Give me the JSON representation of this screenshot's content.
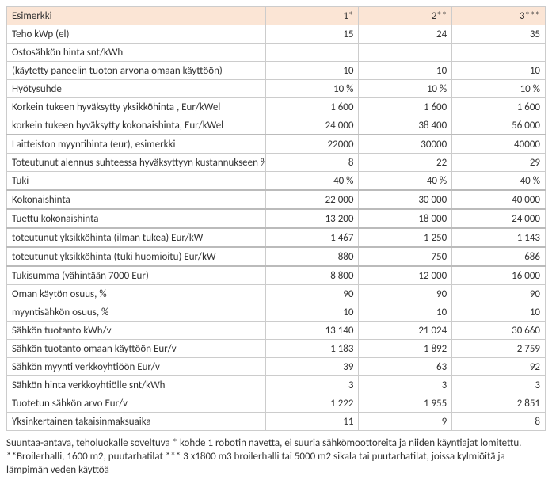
{
  "header": {
    "label": "Esimerkki",
    "cols": [
      "1*",
      "2**",
      "3***"
    ]
  },
  "rows": [
    {
      "label": "Teho kWp (el)",
      "v": [
        "15",
        "24",
        "35"
      ],
      "gap": false
    },
    {
      "label": "Ostosähkön hinta snt/kWh",
      "v": [
        "",
        "",
        ""
      ],
      "gap": false
    },
    {
      "label": " (käytetty paneelin tuoton arvona omaan käyttöön)",
      "v": [
        "10",
        "10",
        "10"
      ],
      "gap": false
    },
    {
      "label": "Hyötysuhde",
      "v": [
        "10 %",
        "10 %",
        "10 %"
      ],
      "gap": false
    },
    {
      "label": "Korkein tukeen hyväksytty yksikköhinta , Eur/kWel",
      "v": [
        "1 600",
        "1 600",
        "1 600"
      ],
      "gap": false
    },
    {
      "label": "korkein tukeen hyväksytty kokonaishinta, Eur/kWel",
      "v": [
        "24 000",
        "38 400",
        "56 000"
      ],
      "gap": false
    },
    {
      "label": "Laitteiston myyntihinta (eur), esimerkki",
      "v": [
        "22000",
        "30000",
        "40000"
      ],
      "gap": true
    },
    {
      "label": "Toteutunut alennus suhteessa hyväksyttyyn kustannukseen %",
      "v": [
        "8",
        "22",
        "29"
      ],
      "gap": false
    },
    {
      "label": "Tuki",
      "v": [
        "40 %",
        "40 %",
        "40 %"
      ],
      "gap": false
    },
    {
      "label": "Kokonaishinta",
      "v": [
        "22 000",
        "30 000",
        "40 000"
      ],
      "gap": true
    },
    {
      "label": "Tuettu kokonaishinta",
      "v": [
        "13 200",
        "18 000",
        "24 000"
      ],
      "gap": true
    },
    {
      "label": "toteutunut yksikköhinta (ilman tukea) Eur/kW",
      "v": [
        "1 467",
        "1 250",
        "1 143"
      ],
      "gap": true
    },
    {
      "label": "toteutunut yksikköhinta (tuki huomioitu) Eur/kW",
      "v": [
        "880",
        "750",
        "686"
      ],
      "gap": true
    },
    {
      "label": " Tukisumma (vähintään 7000 Eur)",
      "v": [
        "8 800",
        "12 000",
        "16 000"
      ],
      "gap": true
    },
    {
      "label": "Oman käytön osuus, %",
      "v": [
        "90",
        "90",
        "90"
      ],
      "gap": false
    },
    {
      "label": "myyntisähkön osuus, %",
      "v": [
        "10",
        "10",
        "10"
      ],
      "gap": false
    },
    {
      "label": "Sähkön tuotanto kWh/v",
      "v": [
        "13 140",
        "21 024",
        "30 660"
      ],
      "gap": false
    },
    {
      "label": "Sähkön tuotanto omaan käyttöön Eur/v",
      "v": [
        "1 183",
        "1 892",
        "2 759"
      ],
      "gap": false
    },
    {
      "label": "Sähkön myynti verkkoyhtiöön  Eur/v",
      "v": [
        "39",
        "63",
        "92"
      ],
      "gap": false
    },
    {
      "label": "Sähkön hinta verkkoyhtiölle snt/kWh",
      "v": [
        "3",
        "3",
        "3"
      ],
      "gap": false
    },
    {
      "label": "Tuotetun sähkön arvo Eur/v",
      "v": [
        "1 222",
        "1 955",
        "2 851"
      ],
      "gap": false
    },
    {
      "label": "Yksinkertainen takaisinmaksuaika",
      "v": [
        "11",
        "9",
        "8"
      ],
      "gap": false
    }
  ],
  "footnote": "Suuntaa-antava, teholuokalle soveltuva * kohde 1 robotin navetta, ei suuria sähkömoottoreita ja niiden käyntiajat lomitettu. **Broilerhalli, 1600 m2, puutarhatilat  *** 3 x1800 m3 broilerhalli tai 5000 m2 sikala tai puutarhatilat, joissa kylmiöitä ja lämpimän veden käyttöä"
}
